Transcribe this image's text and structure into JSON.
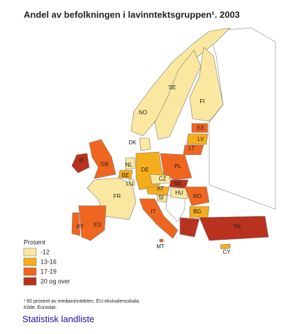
{
  "header": {
    "title": "Andel av befolkningen i lavinntektsgruppen¹. 2003"
  },
  "legend": {
    "title": "Prosent",
    "items": [
      {
        "label": "-12",
        "color": "#fae8a0"
      },
      {
        "label": "13-16",
        "color": "#f5ad1c"
      },
      {
        "label": "17-19",
        "color": "#f0661f"
      },
      {
        "label": "20 og over",
        "color": "#b8321e"
      }
    ]
  },
  "countries": [
    {
      "code": "NO",
      "color": "#fae8a0"
    },
    {
      "code": "SE",
      "color": "#fae8a0"
    },
    {
      "code": "FI",
      "color": "#fae8a0"
    },
    {
      "code": "DK",
      "color": "#fae8a0"
    },
    {
      "code": "EE",
      "color": "#f0661f"
    },
    {
      "code": "LV",
      "color": "#f5ad1c"
    },
    {
      "code": "LT",
      "color": "#f0661f"
    },
    {
      "code": "IE",
      "color": "#b8321e"
    },
    {
      "code": "GB",
      "color": "#f0661f"
    },
    {
      "code": "NL",
      "color": "#fae8a0"
    },
    {
      "code": "BE",
      "color": "#f5ad1c"
    },
    {
      "code": "LU",
      "color": "#fae8a0"
    },
    {
      "code": "DE",
      "color": "#f5ad1c"
    },
    {
      "code": "PL",
      "color": "#f0661f"
    },
    {
      "code": "CZ",
      "color": "#fae8a0"
    },
    {
      "code": "SK",
      "color": "#b8321e"
    },
    {
      "code": "AT",
      "color": "#f5ad1c"
    },
    {
      "code": "HU",
      "color": "#fae8a0"
    },
    {
      "code": "SI",
      "color": "#fae8a0"
    },
    {
      "code": "FR",
      "color": "#fae8a0"
    },
    {
      "code": "IT",
      "color": "#f0661f"
    },
    {
      "code": "ES",
      "color": "#f0661f"
    },
    {
      "code": "PT",
      "color": "#f0661f"
    },
    {
      "code": "RO",
      "color": "#f0661f"
    },
    {
      "code": "BG",
      "color": "#f5ad1c"
    },
    {
      "code": "TR",
      "color": "#b8321e"
    },
    {
      "code": "MT",
      "color": "#f0661f"
    },
    {
      "code": "CY",
      "color": "#f5ad1c"
    }
  ],
  "footnote": {
    "note": "¹ 60 prosent av medianinntekten. EU-ekvivalensskala.",
    "source": "Kilde: Eurostat."
  },
  "link": "Statistisk landliste"
}
